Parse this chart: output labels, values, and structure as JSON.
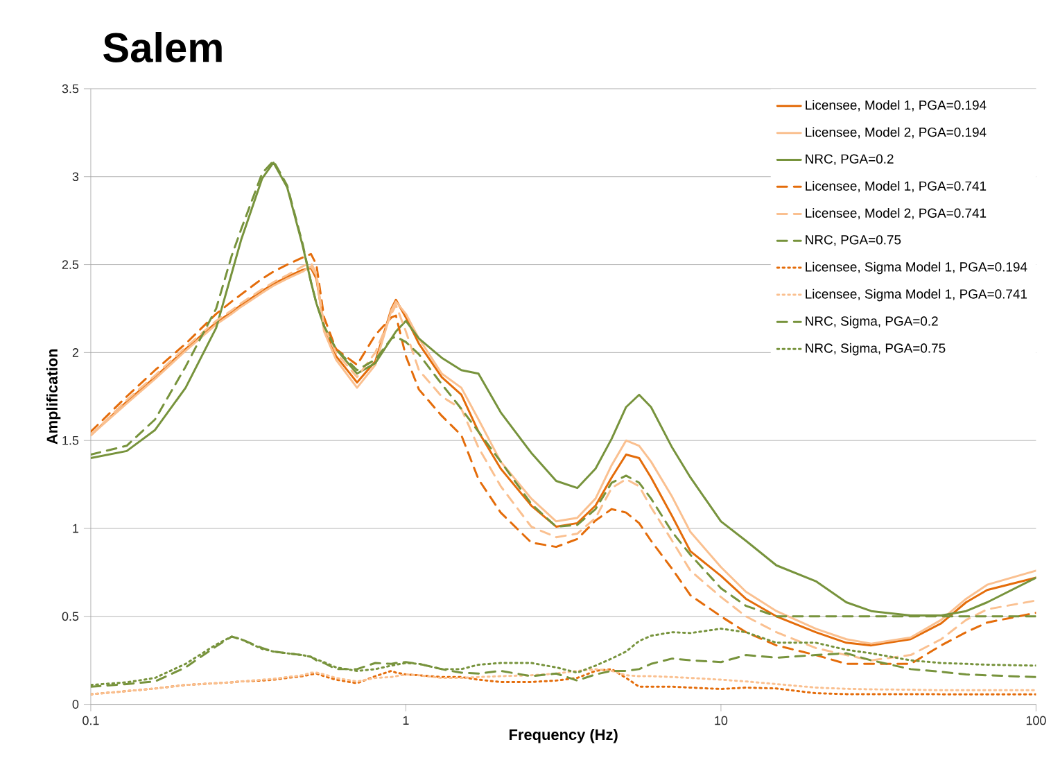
{
  "chart_data": {
    "type": "line",
    "title": "Salem",
    "xlabel": "Frequency (Hz)",
    "ylabel": "Amplification",
    "log": "x",
    "grid": "y",
    "legend": "top right",
    "marker": "none",
    "xlim": [
      0.1,
      100
    ],
    "xticks": [
      0.1,
      1,
      10,
      100
    ],
    "ylim": [
      0,
      3.5
    ],
    "yticks": [
      0,
      0.5,
      1,
      1.5,
      2,
      2.5,
      3,
      3.5
    ],
    "x": [
      0.1,
      0.13,
      0.16,
      0.2,
      0.25,
      0.28,
      0.3,
      0.35,
      0.38,
      0.42,
      0.47,
      0.5,
      0.52,
      0.55,
      0.6,
      0.7,
      0.8,
      0.9,
      0.93,
      1,
      1.1,
      1.3,
      1.5,
      1.7,
      2,
      2.5,
      3,
      3.5,
      4,
      4.5,
      5,
      5.5,
      6,
      7,
      8,
      10,
      12,
      15,
      20,
      25,
      30,
      40,
      50,
      60,
      70,
      100
    ],
    "series": [
      {
        "name": "Licensee, Model 1, PGA=0.194",
        "color": "#e46c0a",
        "line_style": "solid",
        "values": [
          1.53,
          1.72,
          1.86,
          2.02,
          2.17,
          2.23,
          2.27,
          2.35,
          2.39,
          2.43,
          2.47,
          2.48,
          2.42,
          2.15,
          1.98,
          1.83,
          1.95,
          2.25,
          2.3,
          2.2,
          2.05,
          1.86,
          1.76,
          1.55,
          1.34,
          1.13,
          1.01,
          1.03,
          1.13,
          1.29,
          1.42,
          1.4,
          1.29,
          1.07,
          0.87,
          0.73,
          0.6,
          0.5,
          0.41,
          0.35,
          0.335,
          0.37,
          0.46,
          0.58,
          0.65,
          0.72
        ]
      },
      {
        "name": "Licensee, Model 2, PGA=0.194",
        "color": "#fac090",
        "line_style": "solid",
        "values": [
          1.53,
          1.71,
          1.85,
          2.01,
          2.16,
          2.22,
          2.26,
          2.34,
          2.38,
          2.42,
          2.46,
          2.49,
          2.44,
          2.12,
          1.96,
          1.8,
          1.93,
          2.24,
          2.29,
          2.22,
          2.08,
          1.88,
          1.8,
          1.62,
          1.38,
          1.17,
          1.04,
          1.06,
          1.17,
          1.36,
          1.5,
          1.47,
          1.38,
          1.18,
          0.98,
          0.78,
          0.64,
          0.53,
          0.43,
          0.37,
          0.345,
          0.38,
          0.48,
          0.6,
          0.68,
          0.76
        ]
      },
      {
        "name": "NRC, PGA=0.2",
        "color": "#77933c",
        "line_style": "solid",
        "values": [
          1.4,
          1.44,
          1.56,
          1.8,
          2.14,
          2.45,
          2.64,
          2.99,
          3.08,
          2.94,
          2.61,
          2.4,
          2.28,
          2.15,
          2.02,
          1.88,
          1.94,
          2.08,
          2.12,
          2.18,
          2.08,
          1.97,
          1.9,
          1.88,
          1.66,
          1.43,
          1.27,
          1.23,
          1.34,
          1.51,
          1.69,
          1.76,
          1.69,
          1.46,
          1.29,
          1.04,
          0.93,
          0.79,
          0.7,
          0.58,
          0.53,
          0.505,
          0.505,
          0.53,
          0.58,
          0.72
        ]
      },
      {
        "name": "Licensee, Model 1, PGA=0.741",
        "color": "#e46c0a",
        "line_style": "dashed",
        "values": [
          1.55,
          1.75,
          1.9,
          2.05,
          2.22,
          2.29,
          2.33,
          2.42,
          2.46,
          2.5,
          2.54,
          2.56,
          2.5,
          2.2,
          2.02,
          1.93,
          2.1,
          2.2,
          2.21,
          1.98,
          1.79,
          1.64,
          1.53,
          1.28,
          1.09,
          0.92,
          0.895,
          0.94,
          1.045,
          1.11,
          1.09,
          1.03,
          0.93,
          0.77,
          0.62,
          0.5,
          0.41,
          0.335,
          0.28,
          0.23,
          0.23,
          0.23,
          0.335,
          0.41,
          0.465,
          0.52
        ]
      },
      {
        "name": "Licensee, Model 2, PGA=0.741",
        "color": "#fac090",
        "line_style": "dashed",
        "values": [
          1.53,
          1.73,
          1.87,
          2.03,
          2.18,
          2.24,
          2.28,
          2.36,
          2.4,
          2.44,
          2.49,
          2.51,
          2.45,
          2.15,
          2.0,
          1.86,
          2.0,
          2.22,
          2.27,
          2.12,
          1.9,
          1.75,
          1.68,
          1.46,
          1.24,
          1.01,
          0.95,
          0.97,
          1.06,
          1.23,
          1.28,
          1.24,
          1.12,
          0.93,
          0.76,
          0.61,
          0.5,
          0.41,
          0.32,
          0.28,
          0.25,
          0.28,
          0.37,
          0.48,
          0.54,
          0.59
        ]
      },
      {
        "name": "NRC, PGA=0.75",
        "color": "#77933c",
        "line_style": "dashed",
        "values": [
          1.42,
          1.47,
          1.62,
          1.92,
          2.25,
          2.55,
          2.7,
          3.02,
          3.09,
          2.95,
          2.62,
          2.4,
          2.28,
          2.15,
          2.02,
          1.9,
          1.96,
          2.08,
          2.09,
          2.06,
          1.99,
          1.82,
          1.68,
          1.55,
          1.38,
          1.14,
          1.01,
          1.02,
          1.11,
          1.26,
          1.3,
          1.26,
          1.17,
          0.98,
          0.85,
          0.66,
          0.56,
          0.5,
          0.5,
          0.5,
          0.5,
          0.5,
          0.5,
          0.5,
          0.5,
          0.5
        ]
      },
      {
        "name": "Licensee, Sigma Model 1, PGA=0.194",
        "color": "#e46c0a",
        "line_style": "dotted",
        "values": [
          0.057,
          0.075,
          0.09,
          0.11,
          0.12,
          0.125,
          0.13,
          0.135,
          0.14,
          0.15,
          0.16,
          0.17,
          0.175,
          0.16,
          0.14,
          0.12,
          0.16,
          0.19,
          0.18,
          0.17,
          0.165,
          0.155,
          0.155,
          0.14,
          0.127,
          0.127,
          0.135,
          0.15,
          0.19,
          0.2,
          0.15,
          0.1,
          0.1,
          0.1,
          0.095,
          0.087,
          0.095,
          0.09,
          0.063,
          0.058,
          0.058,
          0.058,
          0.057,
          0.057,
          0.057,
          0.057
        ]
      },
      {
        "name": "Licensee, Sigma Model 1, PGA=0.741",
        "color": "#fac090",
        "line_style": "dotted",
        "values": [
          0.057,
          0.075,
          0.09,
          0.11,
          0.12,
          0.125,
          0.13,
          0.14,
          0.145,
          0.155,
          0.165,
          0.18,
          0.18,
          0.17,
          0.15,
          0.13,
          0.15,
          0.155,
          0.16,
          0.17,
          0.165,
          0.15,
          0.15,
          0.155,
          0.16,
          0.165,
          0.175,
          0.19,
          0.2,
          0.19,
          0.165,
          0.16,
          0.16,
          0.155,
          0.15,
          0.14,
          0.13,
          0.115,
          0.095,
          0.088,
          0.085,
          0.083,
          0.08,
          0.08,
          0.08,
          0.08
        ]
      },
      {
        "name": "NRC, Sigma, PGA=0.2",
        "color": "#77933c",
        "line_style": "dashed",
        "values": [
          0.1,
          0.115,
          0.13,
          0.21,
          0.33,
          0.385,
          0.37,
          0.32,
          0.3,
          0.29,
          0.28,
          0.27,
          0.25,
          0.235,
          0.2,
          0.2,
          0.235,
          0.23,
          0.235,
          0.24,
          0.23,
          0.2,
          0.18,
          0.175,
          0.19,
          0.16,
          0.175,
          0.135,
          0.17,
          0.19,
          0.19,
          0.2,
          0.23,
          0.26,
          0.25,
          0.24,
          0.28,
          0.265,
          0.28,
          0.29,
          0.25,
          0.2,
          0.185,
          0.17,
          0.165,
          0.155
        ]
      },
      {
        "name": "NRC, Sigma, PGA=0.75",
        "color": "#77933c",
        "line_style": "dotted",
        "values": [
          0.11,
          0.125,
          0.15,
          0.23,
          0.34,
          0.385,
          0.37,
          0.315,
          0.3,
          0.29,
          0.28,
          0.27,
          0.255,
          0.24,
          0.21,
          0.19,
          0.2,
          0.22,
          0.225,
          0.235,
          0.23,
          0.2,
          0.2,
          0.225,
          0.235,
          0.235,
          0.21,
          0.18,
          0.22,
          0.26,
          0.3,
          0.36,
          0.39,
          0.41,
          0.405,
          0.43,
          0.41,
          0.35,
          0.35,
          0.31,
          0.29,
          0.25,
          0.235,
          0.23,
          0.225,
          0.22
        ]
      }
    ]
  }
}
